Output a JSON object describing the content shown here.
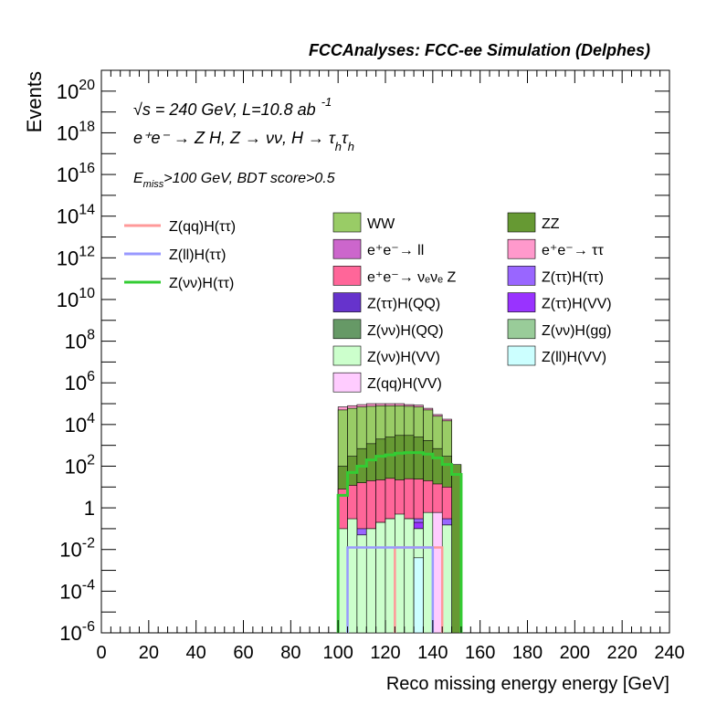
{
  "chart_data": {
    "type": "bar",
    "title": "FCCAnalyses: FCC-ee Simulation (Delphes)",
    "xlabel": "Reco missing energy energy [GeV]",
    "ylabel": "Events",
    "xlim": [
      0,
      240
    ],
    "ylim": [
      1e-06,
      1e+21
    ],
    "ylog": true,
    "bin_width": 4,
    "x_ticks": [
      "0",
      "20",
      "40",
      "60",
      "80",
      "100",
      "120",
      "140",
      "160",
      "180",
      "200",
      "220",
      "240"
    ],
    "y_ticks": [
      {
        "base": "10",
        "exp": "-6",
        "value": 1e-06
      },
      {
        "base": "10",
        "exp": "-4",
        "value": 0.0001
      },
      {
        "base": "10",
        "exp": "-2",
        "value": 0.01
      },
      {
        "base": "1",
        "exp": "",
        "value": 1
      },
      {
        "base": "10",
        "exp": "2",
        "value": 100.0
      },
      {
        "base": "10",
        "exp": "4",
        "value": 10000.0
      },
      {
        "base": "10",
        "exp": "6",
        "value": 1000000.0
      },
      {
        "base": "10",
        "exp": "8",
        "value": 100000000.0
      },
      {
        "base": "10",
        "exp": "10",
        "value": 10000000000.0
      },
      {
        "base": "10",
        "exp": "12",
        "value": 1000000000000.0
      },
      {
        "base": "10",
        "exp": "14",
        "value": 100000000000000.0
      },
      {
        "base": "10",
        "exp": "16",
        "value": 1e+16
      },
      {
        "base": "10",
        "exp": "18",
        "value": 1e+18
      },
      {
        "base": "10",
        "exp": "20",
        "value": 1e+20
      }
    ],
    "annotations": {
      "energy": "√s = 240 GeV, L=10.8 ab",
      "energy_exp": "-1",
      "process": "e⁺e⁻ → Z H, Z → νν, H → τ",
      "process_sub": "h",
      "cuts": "E",
      "cuts_sub": "miss",
      "cuts_rest": ">100 GeV, BDT score>0.5"
    },
    "signals": [
      {
        "name": "Z(qq)H(ττ)",
        "color": "#ff9999",
        "lo": 124,
        "hi": 144,
        "values": [
          0.0125,
          0.0125,
          0.0125,
          0.0125,
          0.0125
        ]
      },
      {
        "name": "Z(ll)H(ττ)",
        "color": "#9999ff",
        "lo": 104,
        "hi": 140,
        "values": [
          0.0125,
          0.0125,
          0.0125,
          0.0125,
          0.0125,
          0.0125,
          0.0125,
          0.0125,
          0.0125
        ]
      },
      {
        "name": "Z(νν)H(ττ)",
        "color": "#33cc33",
        "lo": 100,
        "hi": 152,
        "values": [
          4,
          50,
          100,
          200,
          300,
          350,
          420,
          450,
          450,
          380,
          250,
          120,
          40
        ]
      }
    ],
    "backgrounds": [
      {
        "name": "WW",
        "color": "#99cc66",
        "top": [
          50000,
          60000,
          70000,
          75000,
          80000,
          80000,
          80000,
          75000,
          70000,
          50000,
          25000,
          15000,
          0
        ]
      },
      {
        "name": "ZZ",
        "color": "#669933",
        "top": [
          100,
          300,
          700,
          1200,
          2000,
          2500,
          3000,
          3000,
          2500,
          1700,
          700,
          300,
          120
        ]
      },
      {
        "name": "e⁺e⁻→ ll",
        "color": "#cc66cc",
        "top": [
          0,
          0,
          0,
          0,
          0,
          0,
          0,
          0,
          0,
          0,
          0,
          0,
          0
        ]
      },
      {
        "name": "e⁺e⁻→ ττ",
        "color": "#ff99cc",
        "top": [
          70000,
          80000,
          90000,
          100000,
          100000,
          100000,
          100000,
          90000,
          85000,
          60000,
          30000,
          18000,
          0
        ]
      },
      {
        "name": "e⁺e⁻→ νₑνₑ Z",
        "color": "#ff6699",
        "top": [
          8,
          12,
          16,
          20,
          22,
          26,
          22,
          25,
          24,
          20,
          14,
          10,
          0
        ]
      },
      {
        "name": "Z(ττ)H(ττ)",
        "color": "#9966ff",
        "top": [
          0.05,
          0.07,
          0.1,
          0.08,
          0.2,
          0.3,
          0.3,
          0.3,
          0.3,
          0.3,
          0.3,
          0.3,
          0
        ]
      },
      {
        "name": "Z(ττ)H(QQ)",
        "color": "#6633cc",
        "top": [
          0,
          0,
          0,
          0,
          0,
          0,
          0,
          0,
          0,
          0,
          0,
          0,
          0
        ]
      },
      {
        "name": "Z(ττ)H(VV)",
        "color": "#9933ff",
        "top": [
          0.0125,
          0.0125,
          0.05,
          0.1,
          0.1,
          0.15,
          0.15,
          0.2,
          0.2,
          0.2,
          0.2,
          0.15,
          0
        ]
      },
      {
        "name": "Z(νν)H(QQ)",
        "color": "#669966",
        "top": [
          0.0001,
          0.004,
          0.004,
          0.004,
          0.05,
          0.08,
          0.08,
          0.1,
          0.1,
          0.05,
          0.05,
          0.04,
          0
        ]
      },
      {
        "name": "Z(νν)H(gg)",
        "color": "#99cc99",
        "top": [
          0,
          0,
          0,
          0,
          0,
          0,
          0,
          0,
          0,
          0,
          0,
          0,
          0
        ]
      },
      {
        "name": "Z(νν)H(VV)",
        "color": "#ccffcc",
        "top": [
          0.1,
          0.3,
          0.05,
          0.1,
          0.2,
          0.3,
          0.5,
          0.3,
          0.1,
          0.6,
          0.4,
          0.15,
          0
        ]
      },
      {
        "name": "Z(ll)H(VV)",
        "color": "#ccffff",
        "top": [
          0,
          0,
          0,
          0,
          0,
          0,
          0,
          0,
          0.004,
          0,
          0,
          0,
          0
        ]
      },
      {
        "name": "Z(qq)H(VV)",
        "color": "#ffccff",
        "top": [
          0,
          0,
          0,
          0,
          0,
          0,
          0,
          0,
          0,
          0,
          0.6,
          0,
          0
        ]
      }
    ],
    "legend_left": [
      {
        "label": "Z(qq)H(ττ)",
        "color": "#ff9999"
      },
      {
        "label": "Z(ll)H(ττ)",
        "color": "#9999ff"
      },
      {
        "label": "Z(νν)H(ττ)",
        "color": "#33cc33"
      }
    ],
    "legend_mid": [
      {
        "label": "WW",
        "color": "#99cc66"
      },
      {
        "label": "e⁺e⁻→ ll",
        "color": "#cc66cc"
      },
      {
        "label": "e⁺e⁻→ νₑνₑ Z",
        "color": "#ff6699"
      },
      {
        "label": "Z(ττ)H(QQ)",
        "color": "#6633cc"
      },
      {
        "label": "Z(νν)H(QQ)",
        "color": "#669966"
      },
      {
        "label": "Z(νν)H(VV)",
        "color": "#ccffcc"
      },
      {
        "label": "Z(qq)H(VV)",
        "color": "#ffccff"
      }
    ],
    "legend_right": [
      {
        "label": "ZZ",
        "color": "#669933"
      },
      {
        "label": "e⁺e⁻→ ττ",
        "color": "#ff99cc"
      },
      {
        "label": "Z(ττ)H(ττ)",
        "color": "#9966ff"
      },
      {
        "label": "Z(ττ)H(VV)",
        "color": "#9933ff"
      },
      {
        "label": "Z(νν)H(gg)",
        "color": "#99cc99"
      },
      {
        "label": "Z(ll)H(VV)",
        "color": "#ccffff"
      }
    ]
  }
}
